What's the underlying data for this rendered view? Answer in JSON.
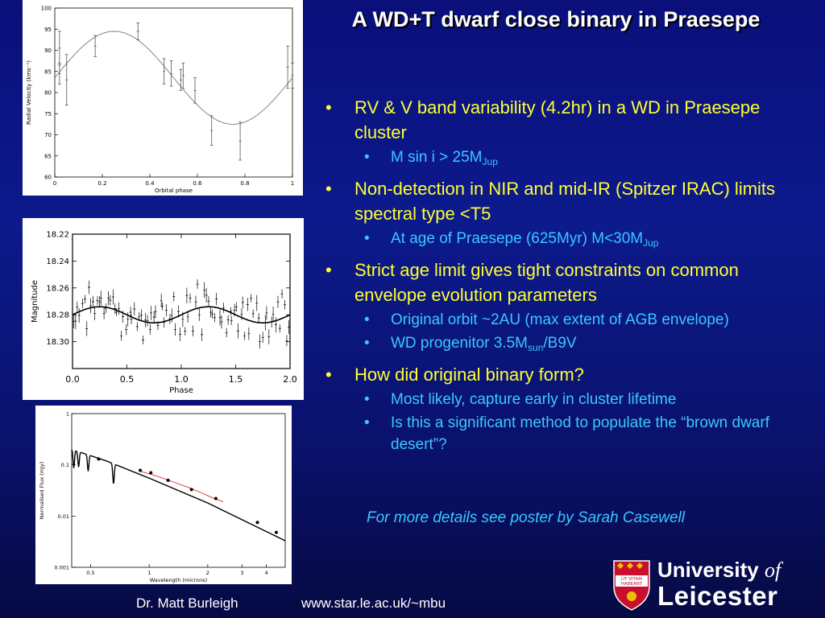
{
  "slide": {
    "title": "A WD+T dwarf close binary in Praesepe",
    "bullets": [
      {
        "text": "RV & V band variability (4.2hr) in a WD in Praesepe cluster",
        "sub": [
          {
            "pre": "M sin i > 25M",
            "subscript": "Jup",
            "post": ""
          }
        ]
      },
      {
        "text": "Non-detection in NIR and mid-IR (Spitzer IRAC) limits spectral type <T5",
        "sub": [
          {
            "pre": "At age of Praesepe (625Myr) M<30M",
            "subscript": "Jup",
            "post": ""
          }
        ]
      },
      {
        "text": "Strict age limit gives tight constraints on common envelope evolution parameters",
        "sub": [
          {
            "pre": "Original orbit ~2AU (max extent of AGB envelope)",
            "subscript": "",
            "post": ""
          },
          {
            "pre": "WD progenitor 3.5M",
            "subscript": "sun",
            "post": "/B9V"
          }
        ]
      },
      {
        "text": "How did original binary form?",
        "sub": [
          {
            "pre": "Most likely, capture early in cluster lifetime",
            "subscript": "",
            "post": ""
          },
          {
            "pre": "Is this a significant method to populate the “brown dwarf desert”?",
            "subscript": "",
            "post": ""
          }
        ]
      }
    ],
    "bullet_glyph": "•",
    "note": "For more details see poster by Sarah Casewell",
    "footer": {
      "author": "Dr. Matt Burleigh",
      "url": "www.star.le.ac.uk/~mbu"
    },
    "logo": {
      "line1_main": "University",
      "line1_italic": "of",
      "line2": "Leicester",
      "shield_motto_1": "UT VITAM",
      "shield_motto_2": "HABEANT"
    },
    "colors": {
      "bullet_main": "#ffff33",
      "bullet_sub": "#3ac8ff",
      "title": "#ffffff",
      "logo_red": "#c8102e"
    }
  },
  "chart_data": [
    {
      "type": "scatter",
      "title": "",
      "xlabel": "Orbital phase",
      "ylabel": "Radial Velocity (kms⁻¹)",
      "xlim": [
        0,
        1
      ],
      "ylim": [
        60,
        100
      ],
      "xticks": [
        "0",
        "0.2",
        "0.4",
        "0.6",
        "0.8",
        "1"
      ],
      "yticks": [
        "60",
        "65",
        "70",
        "75",
        "80",
        "85",
        "90",
        "95",
        "100"
      ],
      "points": [
        {
          "x": 0.02,
          "y": 84.5,
          "err": 2.5
        },
        {
          "x": 0.02,
          "y": 90.5,
          "err": 4
        },
        {
          "x": 0.05,
          "y": 83,
          "err": 6
        },
        {
          "x": 0.17,
          "y": 91,
          "err": 2.5
        },
        {
          "x": 0.35,
          "y": 94.5,
          "err": 2
        },
        {
          "x": 0.46,
          "y": 85,
          "err": 3
        },
        {
          "x": 0.49,
          "y": 84.5,
          "err": 3
        },
        {
          "x": 0.53,
          "y": 83,
          "err": 2.5
        },
        {
          "x": 0.54,
          "y": 84,
          "err": 3
        },
        {
          "x": 0.59,
          "y": 80.5,
          "err": 3
        },
        {
          "x": 0.66,
          "y": 71,
          "err": 3.5
        },
        {
          "x": 0.78,
          "y": 68.5,
          "err": 4.5
        },
        {
          "x": 0.98,
          "y": 86,
          "err": 5
        },
        {
          "x": 1.0,
          "y": 84,
          "err": 3
        }
      ],
      "model": {
        "mean": 83.5,
        "amplitude": 11,
        "peak_phase": 0.25
      }
    },
    {
      "type": "scatter",
      "title": "",
      "xlabel": "Phase",
      "ylabel": "Magnitude",
      "xlim": [
        0,
        2
      ],
      "ylim": [
        18.22,
        18.32
      ],
      "y_inverted": true,
      "xticks": [
        "0.0",
        "0.5",
        "1.0",
        "1.5",
        "2.0"
      ],
      "yticks": [
        "18.22",
        "18.24",
        "18.26",
        "18.28",
        "18.30"
      ],
      "model": {
        "mean": 18.28,
        "amplitude": 0.006,
        "period": 1,
        "brightest_phase": 0.25
      },
      "scatter_rms": 0.008,
      "n_points": 100
    },
    {
      "type": "line",
      "title": "",
      "xlabel": "Wavelength (microns)",
      "ylabel": "Normalised Flux (mJy)",
      "x_log": true,
      "y_log": true,
      "xlim": [
        0.4,
        5
      ],
      "ylim": [
        0.001,
        1
      ],
      "xticks": [
        "0.5",
        "1",
        "2",
        "3",
        "4"
      ],
      "yticks": [
        "0.001",
        "0.01",
        "0.1",
        "1"
      ],
      "model": {
        "x": [
          0.4,
          0.6,
          1.0,
          2.0,
          5.0
        ],
        "y": [
          0.2,
          0.12,
          0.055,
          0.018,
          0.0033
        ]
      },
      "photometry": [
        {
          "x": 0.55,
          "y": 0.13
        },
        {
          "x": 0.9,
          "y": 0.078
        },
        {
          "x": 1.02,
          "y": 0.07
        },
        {
          "x": 1.25,
          "y": 0.05
        },
        {
          "x": 1.65,
          "y": 0.033
        },
        {
          "x": 2.2,
          "y": 0.022
        },
        {
          "x": 3.6,
          "y": 0.0075
        },
        {
          "x": 4.5,
          "y": 0.0048
        }
      ],
      "red_spectrum": {
        "x": [
          0.9,
          1.1,
          1.3,
          1.6,
          1.8,
          2.1,
          2.4
        ],
        "y": [
          0.075,
          0.06,
          0.048,
          0.036,
          0.03,
          0.023,
          0.019
        ]
      }
    }
  ]
}
